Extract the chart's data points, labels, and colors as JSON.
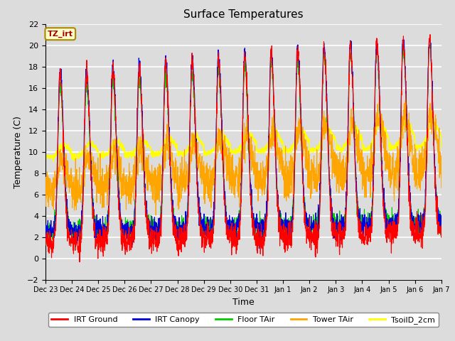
{
  "title": "Surface Temperatures",
  "ylabel": "Temperature (C)",
  "xlabel": "Time",
  "ylim": [
    -2,
    22
  ],
  "yticks": [
    -2,
    0,
    2,
    4,
    6,
    8,
    10,
    12,
    14,
    16,
    18,
    20,
    22
  ],
  "bg_color": "#dcdcdc",
  "plot_bg_color": "#dcdcdc",
  "grid_color": "white",
  "tz_label": "TZ_irt",
  "tz_box_bg": "#ffffcc",
  "tz_box_edge": "#aa8800",
  "legend_entries": [
    "IRT Ground",
    "IRT Canopy",
    "Floor TAir",
    "Tower TAir",
    "TsoilD_2cm"
  ],
  "legend_colors": [
    "red",
    "#0000dd",
    "#00cc00",
    "orange",
    "yellow"
  ],
  "line_colors": {
    "IRT Ground": "red",
    "IRT Canopy": "#0000dd",
    "Floor TAir": "#00cc00",
    "Tower TAir": "orange",
    "TsoilD_2cm": "yellow"
  },
  "x_tick_labels": [
    "Dec 23",
    "Dec 24",
    "Dec 25",
    "Dec 26",
    "Dec 27",
    "Dec 28",
    "Dec 29",
    "Dec 30",
    "Dec 31",
    "Jan 1",
    "Jan 2",
    "Jan 3",
    "Jan 4",
    "Jan 5",
    "Jan 6",
    "Jan 7"
  ],
  "n_days": 15,
  "pts_per_day": 144
}
